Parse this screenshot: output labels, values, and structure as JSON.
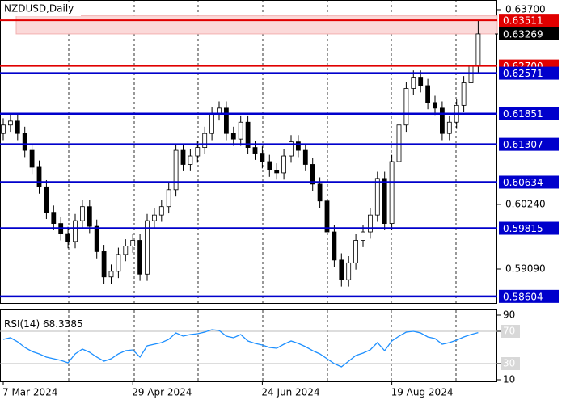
{
  "chart_data": [
    {
      "type": "candlestick",
      "title": "NZDUSD,Daily",
      "categories": [
        "7 Mar 2024",
        null,
        null,
        null,
        null,
        null,
        null,
        null,
        null,
        null,
        null,
        null,
        null,
        null,
        null,
        null,
        null,
        null,
        "29 Apr 2024",
        null,
        null,
        null,
        null,
        null,
        null,
        null,
        null,
        null,
        null,
        null,
        null,
        null,
        null,
        null,
        null,
        null,
        "24 Jun 2024",
        null,
        null,
        null,
        null,
        null,
        null,
        null,
        null,
        null,
        null,
        null,
        null,
        null,
        null,
        null,
        null,
        null,
        "19 Aug 2024",
        null,
        null,
        null,
        null,
        null,
        null,
        null,
        null,
        null,
        null,
        null,
        null
      ],
      "open": [
        0.615,
        0.6165,
        0.6172,
        0.615,
        0.612,
        0.609,
        0.6055,
        0.601,
        0.599,
        0.5972,
        0.5958,
        0.5995,
        0.602,
        0.5985,
        0.594,
        0.5895,
        0.5905,
        0.5935,
        0.595,
        0.596,
        0.59,
        0.5995,
        0.6005,
        0.602,
        0.605,
        0.612,
        0.6095,
        0.611,
        0.6125,
        0.615,
        0.6185,
        0.6195,
        0.615,
        0.614,
        0.617,
        0.6125,
        0.6115,
        0.61,
        0.6085,
        0.608,
        0.611,
        0.6135,
        0.612,
        0.6095,
        0.606,
        0.603,
        0.5975,
        0.5925,
        0.589,
        0.592,
        0.596,
        0.5975,
        0.6005,
        0.607,
        0.599,
        0.61,
        0.6165,
        0.623,
        0.625,
        0.6235,
        0.6205,
        0.6195,
        0.615,
        0.617,
        0.62,
        0.624,
        0.627
      ],
      "high": [
        0.6177,
        0.6184,
        0.6184,
        0.6162,
        0.6132,
        0.6102,
        0.6067,
        0.6022,
        0.6002,
        0.5984,
        0.6007,
        0.6032,
        0.6032,
        0.5997,
        0.5952,
        0.5917,
        0.5947,
        0.5962,
        0.5972,
        0.5972,
        0.6007,
        0.6017,
        0.6032,
        0.6062,
        0.6132,
        0.6132,
        0.6122,
        0.6137,
        0.6162,
        0.6197,
        0.6207,
        0.6207,
        0.6162,
        0.6182,
        0.6182,
        0.6137,
        0.6127,
        0.6112,
        0.6097,
        0.6122,
        0.6147,
        0.6147,
        0.6132,
        0.6107,
        0.6072,
        0.6042,
        0.5987,
        0.5937,
        0.5932,
        0.5972,
        0.5987,
        0.6017,
        0.6082,
        0.6082,
        0.6112,
        0.6177,
        0.6242,
        0.6262,
        0.6262,
        0.6247,
        0.6217,
        0.6207,
        0.6182,
        0.6212,
        0.6252,
        0.6282,
        0.635
      ],
      "low": [
        0.6138,
        0.6153,
        0.6138,
        0.6108,
        0.6078,
        0.6043,
        0.5998,
        0.5978,
        0.596,
        0.5946,
        0.5946,
        0.5983,
        0.5973,
        0.5928,
        0.5883,
        0.5883,
        0.5893,
        0.5923,
        0.5938,
        0.5888,
        0.5888,
        0.5983,
        0.5993,
        0.6008,
        0.6038,
        0.6083,
        0.6083,
        0.6098,
        0.6113,
        0.6138,
        0.6173,
        0.6138,
        0.6128,
        0.6128,
        0.6113,
        0.6103,
        0.6088,
        0.6073,
        0.6068,
        0.6068,
        0.6098,
        0.6108,
        0.6083,
        0.6048,
        0.6018,
        0.5963,
        0.5913,
        0.5878,
        0.5878,
        0.5908,
        0.5948,
        0.5963,
        0.5993,
        0.5978,
        0.5978,
        0.6088,
        0.6153,
        0.6218,
        0.6223,
        0.6193,
        0.6183,
        0.6138,
        0.6138,
        0.6158,
        0.6188,
        0.6228,
        0.6258
      ],
      "close": [
        0.6165,
        0.6172,
        0.615,
        0.612,
        0.609,
        0.6055,
        0.601,
        0.599,
        0.5972,
        0.5958,
        0.5995,
        0.602,
        0.5985,
        0.594,
        0.5895,
        0.5905,
        0.5935,
        0.595,
        0.596,
        0.59,
        0.5995,
        0.6005,
        0.602,
        0.605,
        0.612,
        0.6095,
        0.611,
        0.6125,
        0.615,
        0.6185,
        0.6195,
        0.615,
        0.614,
        0.617,
        0.6125,
        0.6115,
        0.61,
        0.6085,
        0.608,
        0.611,
        0.6135,
        0.612,
        0.6095,
        0.606,
        0.603,
        0.5975,
        0.5925,
        0.589,
        0.592,
        0.596,
        0.5975,
        0.6005,
        0.607,
        0.599,
        0.61,
        0.6165,
        0.623,
        0.625,
        0.6235,
        0.6205,
        0.6195,
        0.615,
        0.617,
        0.62,
        0.624,
        0.627,
        0.6327
      ],
      "ylim": [
        0.58487,
        0.63872
      ],
      "yticks": [
        {
          "value": 0.637,
          "label": "0.63700"
        },
        {
          "value": 0.6024,
          "label": "0.60240"
        },
        {
          "value": 0.5909,
          "label": "0.59090"
        }
      ],
      "blue_levels": [
        0.62571,
        0.61851,
        0.61307,
        0.60634,
        0.59815,
        0.58604
      ],
      "blue_level_color": "#0000cc",
      "red_levels": [
        0.63511,
        {
          "value": 0.627,
          "label": "0.62700"
        }
      ],
      "red_level_color": "#e00000",
      "zone": [
        0.6327,
        0.6359
      ],
      "zone_color": "#fbd9d9",
      "last_price": 0.63269,
      "bull_color": "#ffffff",
      "bear_color": "#000000"
    },
    {
      "type": "line",
      "title": "RSI(14)",
      "values": [
        60,
        62,
        57,
        50,
        45,
        42,
        38,
        36,
        34,
        31,
        42,
        48,
        44,
        38,
        33,
        36,
        42,
        46,
        47,
        38,
        52,
        54,
        56,
        60,
        68,
        64,
        66,
        67,
        69,
        72,
        71,
        64,
        62,
        66,
        58,
        55,
        53,
        50,
        49,
        54,
        58,
        55,
        51,
        46,
        42,
        36,
        30,
        26,
        33,
        40,
        43,
        47,
        56,
        46,
        58,
        64,
        69,
        70,
        68,
        63,
        61,
        54,
        56,
        59,
        63,
        66,
        68.3385
      ],
      "color": "#1e90ff",
      "ylim": [
        10,
        90
      ],
      "yticks": [
        90,
        70,
        30,
        10
      ],
      "levels": [
        70,
        30
      ]
    }
  ]
}
